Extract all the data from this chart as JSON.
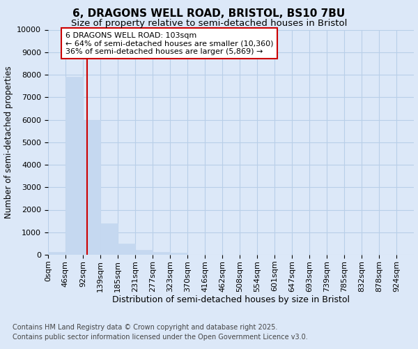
{
  "title1": "6, DRAGONS WELL ROAD, BRISTOL, BS10 7BU",
  "title2": "Size of property relative to semi-detached houses in Bristol",
  "xlabel": "Distribution of semi-detached houses by size in Bristol",
  "ylabel": "Number of semi-detached properties",
  "bin_edges": [
    0,
    46,
    92,
    139,
    185,
    231,
    277,
    323,
    370,
    416,
    462,
    508,
    554,
    601,
    647,
    693,
    739,
    785,
    832,
    878,
    924,
    970
  ],
  "bin_labels": [
    "0sqm",
    "46sqm",
    "92sqm",
    "139sqm",
    "185sqm",
    "231sqm",
    "277sqm",
    "323sqm",
    "370sqm",
    "416sqm",
    "462sqm",
    "508sqm",
    "554sqm",
    "601sqm",
    "647sqm",
    "693sqm",
    "739sqm",
    "785sqm",
    "832sqm",
    "878sqm",
    "924sqm"
  ],
  "counts": [
    110,
    7900,
    6000,
    1400,
    500,
    220,
    120,
    80,
    0,
    0,
    0,
    0,
    0,
    0,
    0,
    0,
    0,
    0,
    0,
    0,
    0
  ],
  "bar_color": "#c5d8f0",
  "bar_edge_color": "#c5d8f0",
  "property_value": 103,
  "property_line_color": "#cc0000",
  "annotation_line1": "6 DRAGONS WELL ROAD: 103sqm",
  "annotation_line2": "← 64% of semi-detached houses are smaller (10,360)",
  "annotation_line3": "36% of semi-detached houses are larger (5,869) →",
  "annotation_box_color": "#ffffff",
  "annotation_box_edge_color": "#cc0000",
  "ylim": [
    0,
    10000
  ],
  "yticks": [
    0,
    1000,
    2000,
    3000,
    4000,
    5000,
    6000,
    7000,
    8000,
    9000,
    10000
  ],
  "footer1": "Contains HM Land Registry data © Crown copyright and database right 2025.",
  "footer2": "Contains public sector information licensed under the Open Government Licence v3.0.",
  "bg_color": "#dce8f8",
  "plot_bg_color": "#dce8f8",
  "grid_color": "#b8cfe8",
  "title1_fontsize": 11,
  "title2_fontsize": 9.5,
  "xlabel_fontsize": 9,
  "ylabel_fontsize": 8.5,
  "tick_fontsize": 8,
  "annotation_fontsize": 8,
  "footer_fontsize": 7
}
